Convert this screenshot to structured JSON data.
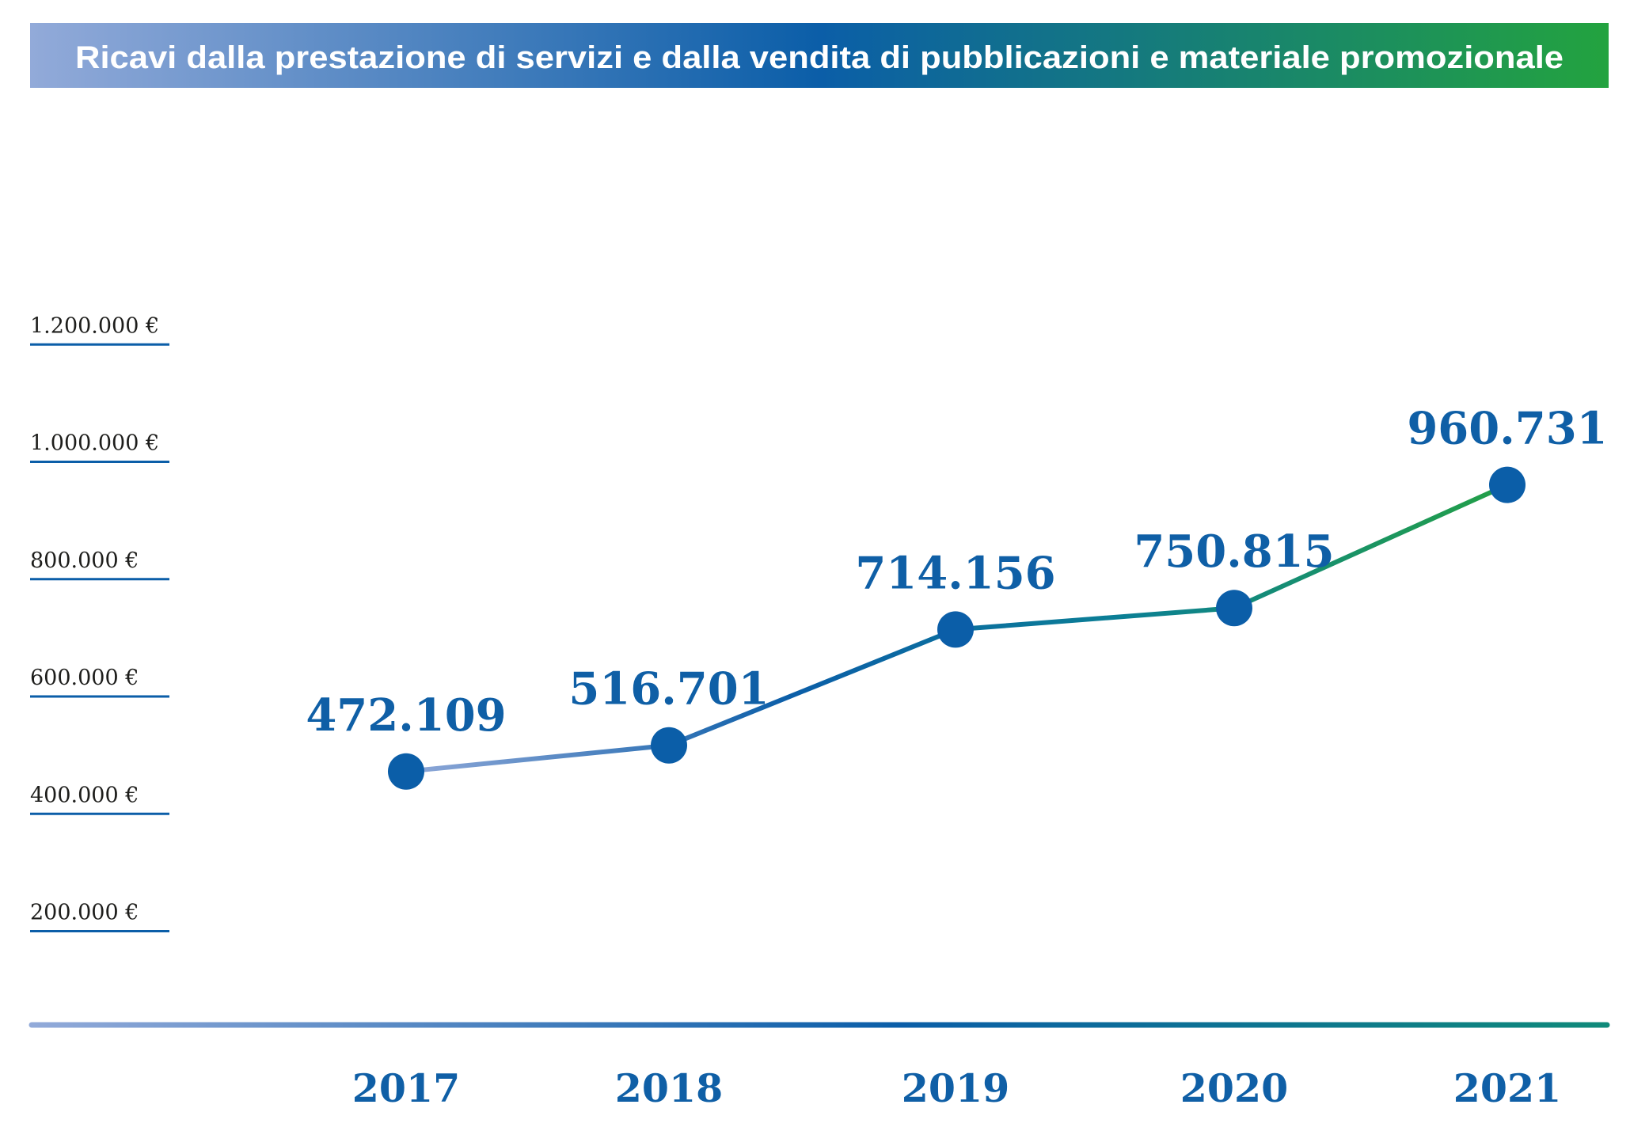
{
  "chart_data": {
    "type": "line",
    "title": "Ricavi dalla prestazione di servizi e dalla vendita di pubblicazioni e materiale promozionale",
    "xlabel": "",
    "ylabel": "",
    "categories": [
      "2017",
      "2018",
      "2019",
      "2020",
      "2021"
    ],
    "series": [
      {
        "values": [
          472109,
          516701,
          714156,
          750815,
          960731
        ],
        "labels": [
          "472.109",
          "516.701",
          "714.156",
          "750.815",
          "960.731"
        ]
      }
    ],
    "yticks": [
      {
        "value": 200000,
        "label": "200.000 €"
      },
      {
        "value": 400000,
        "label": "400.000 €"
      },
      {
        "value": 600000,
        "label": "600.000 €"
      },
      {
        "value": 800000,
        "label": "800.000 €"
      },
      {
        "value": 1000000,
        "label": "1.000.000 €"
      },
      {
        "value": 1200000,
        "label": "1.200.000 €"
      }
    ],
    "ylim": [
      0,
      1200000
    ],
    "grid": false,
    "legend": "none",
    "colors": {
      "line_start": "#8fa8d8",
      "line_mid": "#0b5ea8",
      "line_end": "#23a046",
      "marker": "#0b5ea8",
      "label": "#0f5fa6",
      "title_bar_start": "#92aad9",
      "title_bar_mid": "#0b5ea8",
      "title_bar_end": "#23a33f",
      "axis_start": "#92aad9",
      "axis_mid": "#0b5ea8",
      "axis_end": "#0f8a7a",
      "tick_rule": "#0b5ea8"
    }
  }
}
